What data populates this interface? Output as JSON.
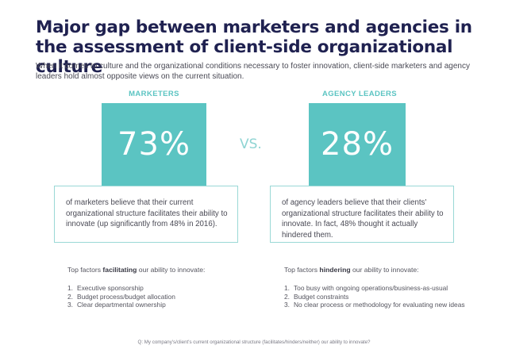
{
  "title": "Major gap between marketers and agencies in the assessment of client-side organizational culture",
  "intro": "When it comes to culture and the organizational conditions necessary to foster innovation, client-side marketers and agency leaders hold almost opposite views on the current situation.",
  "vs_label": "VS.",
  "left": {
    "heading": "MARKETERS",
    "stat": "73%",
    "description": "of marketers believe that their current organizational structure facilitates their ability to innovate (up significantly from 48% in 2016).",
    "factors_prefix": "Top factors ",
    "factors_keyword": "facilitating",
    "factors_suffix": " our ability to innovate:",
    "factors": [
      {
        "num": "1.",
        "text": "Executive sponsorship"
      },
      {
        "num": "2.",
        "text": "Budget process/budget allocation"
      },
      {
        "num": "3.",
        "text": "Clear departmental ownership"
      }
    ]
  },
  "right": {
    "heading": "AGENCY LEADERS",
    "stat": "28%",
    "description": "of agency leaders believe that their clients' organizational structure facilitates their ability to innovate. In fact, 48% thought it actually hindered them.",
    "factors_prefix": "Top factors ",
    "factors_keyword": "hindering",
    "factors_suffix": " our ability to innovate:",
    "factors": [
      {
        "num": "1.",
        "text": "Too busy with ongoing operations/business-as-usual"
      },
      {
        "num": "2.",
        "text": "Budget constraints"
      },
      {
        "num": "3.",
        "text": "No clear process or methodology for evaluating new ideas"
      }
    ]
  },
  "footnote": "Q: My company's/client's current organizational structure (facilitates/hinders/neither) our ability to innovate?",
  "colors": {
    "title": "#1f2150",
    "accent": "#5bc4c2",
    "box_border": "#9ad8d6"
  }
}
